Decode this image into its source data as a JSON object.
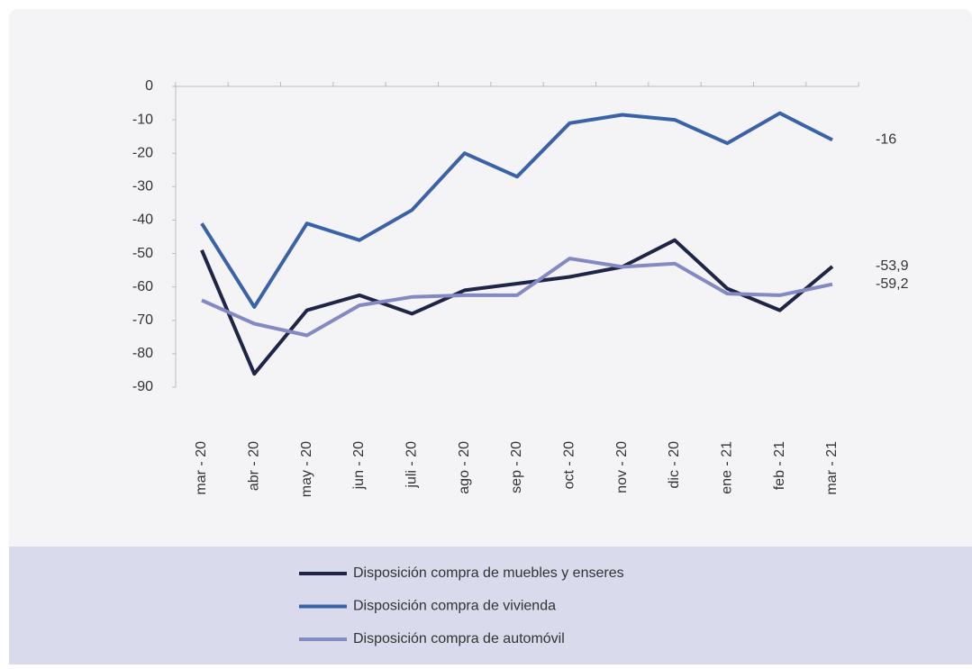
{
  "chart_data": {
    "type": "line",
    "categories": [
      "mar - 20",
      "abr - 20",
      "may - 20",
      "jun - 20",
      "juli - 20",
      "ago - 20",
      "sep - 20",
      "oct - 20",
      "nov - 20",
      "dic - 20",
      "ene - 21",
      "feb - 21",
      "mar - 21"
    ],
    "series": [
      {
        "name": "Disposición compra de muebles y enseres",
        "color": "#1f2547",
        "values": [
          -49,
          -86,
          -67,
          -62.5,
          -68,
          -61,
          -59,
          -57,
          -54,
          -46,
          -60.5,
          -67,
          -53.9
        ],
        "value_labels": [
          null,
          null,
          null,
          null,
          null,
          null,
          null,
          null,
          null,
          null,
          null,
          null,
          "-53,9"
        ]
      },
      {
        "name": "Disposición compra de vivienda",
        "color": "#3a62a8",
        "values": [
          -41,
          -66,
          -41,
          -46,
          -37,
          -20,
          -27,
          -11,
          -8.5,
          -10,
          -17,
          -8,
          -16
        ],
        "value_labels": [
          null,
          null,
          null,
          null,
          null,
          null,
          null,
          null,
          null,
          null,
          null,
          null,
          "-16"
        ]
      },
      {
        "name": "Disposición compra de automóvil",
        "color": "#8389c2",
        "values": [
          -64,
          -71,
          -74.5,
          -65.5,
          -63,
          -62.5,
          -62.5,
          -51.5,
          -54,
          -53,
          -62,
          -62.5,
          -59.2
        ],
        "value_labels": [
          null,
          null,
          null,
          null,
          null,
          null,
          null,
          null,
          null,
          null,
          null,
          null,
          "-59,2"
        ]
      }
    ],
    "ylim": [
      -90,
      0
    ],
    "yticks": [
      0,
      -10,
      -20,
      -30,
      -40,
      -50,
      -60,
      -70,
      -80,
      -90
    ],
    "grid": false
  }
}
